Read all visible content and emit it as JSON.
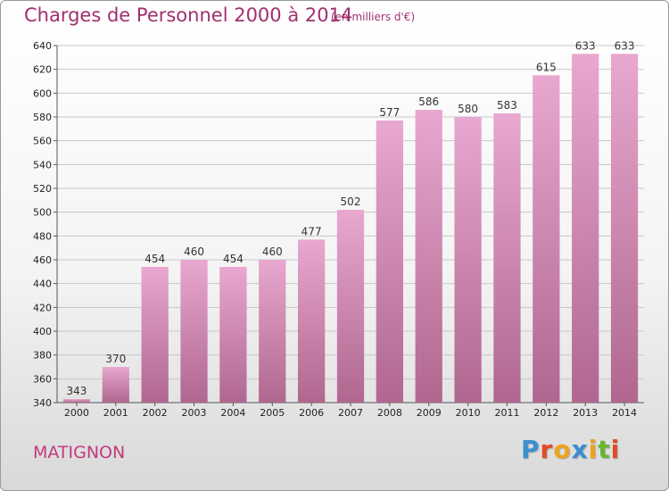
{
  "header": {
    "title": "Charges de Personnel 2000 à 2014",
    "unit": "(en milliers d'€)"
  },
  "footer": {
    "commune": "MATIGNON",
    "logo_letters": [
      "P",
      "r",
      "o",
      "x",
      "i",
      "t",
      "i"
    ]
  },
  "colors": {
    "title": "#a0306e",
    "bar_top": "#e8a8cf",
    "bar_bottom": "#b0678f",
    "logo": [
      "#3a8fd0",
      "#e24b2a",
      "#f0a21c",
      "#3a8fd0",
      "#f0a21c",
      "#68b42e",
      "#e24b2a"
    ]
  },
  "chart_data": {
    "type": "bar",
    "title": "Charges de Personnel 2000 à 2014",
    "subtitle": "(en milliers d'€)",
    "categories": [
      "2000",
      "2001",
      "2002",
      "2003",
      "2004",
      "2005",
      "2006",
      "2007",
      "2008",
      "2009",
      "2010",
      "2011",
      "2012",
      "2013",
      "2014"
    ],
    "values": [
      343,
      370,
      454,
      460,
      454,
      460,
      477,
      502,
      577,
      586,
      580,
      583,
      615,
      633,
      633
    ],
    "ylim": [
      340,
      640
    ],
    "yticks": [
      340,
      360,
      380,
      400,
      420,
      440,
      460,
      480,
      500,
      520,
      540,
      560,
      580,
      600,
      620,
      640
    ],
    "grid": true,
    "legend": "none"
  }
}
